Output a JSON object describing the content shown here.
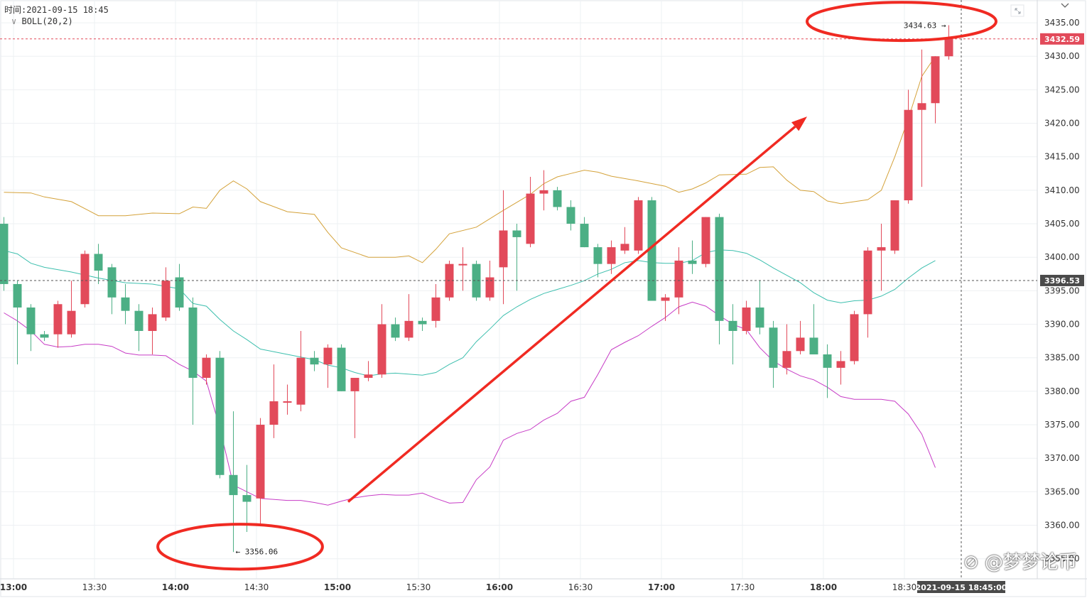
{
  "header": {
    "time_label": "时间:2021-09-15 18:45",
    "indicator_label": "BOLL(20,2)"
  },
  "watermark": "@梦梦论币",
  "crosshair_time": "2021-09-15 18:45:00",
  "colors": {
    "up": "#e24a5a",
    "down": "#4caf85",
    "boll_upper": "#d4a23a",
    "boll_mid": "#3dbfae",
    "boll_lower": "#c73cc6",
    "annotation": "#f02a22",
    "tag_bg": "#4a4a4a"
  },
  "icons": [
    "expand-icon",
    "chevron-down-icon",
    "collapse-chevron-icon"
  ],
  "chart_data": {
    "type": "candlestick",
    "interval": "5m",
    "x_ticks": [
      "13:00",
      "13:30",
      "14:00",
      "14:30",
      "15:00",
      "15:30",
      "16:00",
      "16:30",
      "17:00",
      "17:30",
      "18:00",
      "18:30"
    ],
    "x_tick_index": [
      0,
      6,
      12,
      18,
      24,
      30,
      36,
      42,
      48,
      54,
      60,
      66
    ],
    "y_ticks": [
      3355,
      3360,
      3365,
      3370,
      3375,
      3380,
      3385,
      3390,
      3395,
      3400,
      3405,
      3410,
      3415,
      3420,
      3425,
      3430,
      3435
    ],
    "ylim": [
      3352.0,
      3438.4
    ],
    "current_price": "3432.59",
    "crosshair_price": "3396.53",
    "high_label": "3434.63",
    "low_label": "3356.06",
    "candles": [
      {
        "o": 3405.0,
        "h": 3406.0,
        "l": 3395.0,
        "c": 3396.0
      },
      {
        "o": 3396.0,
        "h": 3396.5,
        "l": 3384.0,
        "c": 3392.5
      },
      {
        "o": 3392.5,
        "h": 3393.0,
        "l": 3386.0,
        "c": 3388.5
      },
      {
        "o": 3388.5,
        "h": 3389.0,
        "l": 3387.5,
        "c": 3388.0
      },
      {
        "o": 3388.5,
        "h": 3393.5,
        "l": 3386.5,
        "c": 3393.0
      },
      {
        "o": 3388.5,
        "h": 3396.5,
        "l": 3388.0,
        "c": 3392.0
      },
      {
        "o": 3393.0,
        "h": 3401.0,
        "l": 3392.5,
        "c": 3400.5
      },
      {
        "o": 3400.5,
        "h": 3402.0,
        "l": 3396.0,
        "c": 3398.0
      },
      {
        "o": 3398.5,
        "h": 3399.0,
        "l": 3391.5,
        "c": 3394.0
      },
      {
        "o": 3394.0,
        "h": 3396.0,
        "l": 3390.0,
        "c": 3392.0
      },
      {
        "o": 3392.0,
        "h": 3393.0,
        "l": 3386.0,
        "c": 3389.0
      },
      {
        "o": 3389.0,
        "h": 3392.5,
        "l": 3385.5,
        "c": 3391.5
      },
      {
        "o": 3391.0,
        "h": 3398.5,
        "l": 3390.5,
        "c": 3396.5
      },
      {
        "o": 3397.0,
        "h": 3399.0,
        "l": 3392.0,
        "c": 3392.5
      },
      {
        "o": 3392.5,
        "h": 3394.0,
        "l": 3375.0,
        "c": 3382.0
      },
      {
        "o": 3382.0,
        "h": 3385.5,
        "l": 3381.0,
        "c": 3385.0
      },
      {
        "o": 3385.0,
        "h": 3386.0,
        "l": 3367.0,
        "c": 3367.5
      },
      {
        "o": 3367.5,
        "h": 3377.0,
        "l": 3356.0,
        "c": 3364.5
      },
      {
        "o": 3364.5,
        "h": 3369.0,
        "l": 3359.0,
        "c": 3363.5
      },
      {
        "o": 3364.0,
        "h": 3376.0,
        "l": 3360.0,
        "c": 3375.0
      },
      {
        "o": 3375.0,
        "h": 3384.0,
        "l": 3373.0,
        "c": 3378.5
      },
      {
        "o": 3378.5,
        "h": 3381.0,
        "l": 3376.5,
        "c": 3378.5
      },
      {
        "o": 3378.0,
        "h": 3389.0,
        "l": 3377.0,
        "c": 3385.0
      },
      {
        "o": 3385.0,
        "h": 3386.0,
        "l": 3383.0,
        "c": 3384.0
      },
      {
        "o": 3384.0,
        "h": 3387.0,
        "l": 3380.5,
        "c": 3386.5
      },
      {
        "o": 3386.5,
        "h": 3387.0,
        "l": 3380.0,
        "c": 3380.0
      },
      {
        "o": 3380.0,
        "h": 3382.0,
        "l": 3373.0,
        "c": 3382.0
      },
      {
        "o": 3382.0,
        "h": 3384.5,
        "l": 3381.5,
        "c": 3382.5
      },
      {
        "o": 3382.5,
        "h": 3393.0,
        "l": 3382.0,
        "c": 3390.0
      },
      {
        "o": 3390.0,
        "h": 3391.0,
        "l": 3387.5,
        "c": 3388.0
      },
      {
        "o": 3388.0,
        "h": 3394.5,
        "l": 3387.5,
        "c": 3390.5
      },
      {
        "o": 3390.5,
        "h": 3391.0,
        "l": 3389.0,
        "c": 3390.0
      },
      {
        "o": 3390.5,
        "h": 3396.0,
        "l": 3389.5,
        "c": 3394.0
      },
      {
        "o": 3394.0,
        "h": 3399.5,
        "l": 3393.5,
        "c": 3399.0
      },
      {
        "o": 3399.0,
        "h": 3401.5,
        "l": 3395.0,
        "c": 3399.0
      },
      {
        "o": 3399.0,
        "h": 3399.5,
        "l": 3393.5,
        "c": 3394.0
      },
      {
        "o": 3394.0,
        "h": 3399.5,
        "l": 3393.5,
        "c": 3397.0
      },
      {
        "o": 3398.5,
        "h": 3410.0,
        "l": 3393.0,
        "c": 3404.0
      },
      {
        "o": 3404.0,
        "h": 3405.0,
        "l": 3395.0,
        "c": 3403.0
      },
      {
        "o": 3402.0,
        "h": 3412.0,
        "l": 3401.5,
        "c": 3409.5
      },
      {
        "o": 3409.5,
        "h": 3413.0,
        "l": 3407.0,
        "c": 3410.0
      },
      {
        "o": 3410.0,
        "h": 3410.5,
        "l": 3407.0,
        "c": 3407.5
      },
      {
        "o": 3407.5,
        "h": 3408.5,
        "l": 3404.0,
        "c": 3405.0
      },
      {
        "o": 3405.0,
        "h": 3406.0,
        "l": 3401.5,
        "c": 3401.5
      },
      {
        "o": 3401.5,
        "h": 3402.0,
        "l": 3397.0,
        "c": 3399.0
      },
      {
        "o": 3399.0,
        "h": 3402.5,
        "l": 3397.5,
        "c": 3401.5
      },
      {
        "o": 3401.0,
        "h": 3404.5,
        "l": 3400.5,
        "c": 3402.0
      },
      {
        "o": 3401.0,
        "h": 3409.0,
        "l": 3400.5,
        "c": 3408.5
      },
      {
        "o": 3408.5,
        "h": 3409.0,
        "l": 3393.5,
        "c": 3393.5
      },
      {
        "o": 3393.5,
        "h": 3394.5,
        "l": 3390.5,
        "c": 3394.0
      },
      {
        "o": 3394.0,
        "h": 3401.5,
        "l": 3391.5,
        "c": 3399.5
      },
      {
        "o": 3399.5,
        "h": 3402.5,
        "l": 3397.5,
        "c": 3399.0
      },
      {
        "o": 3399.0,
        "h": 3406.0,
        "l": 3398.5,
        "c": 3406.0
      },
      {
        "o": 3406.0,
        "h": 3406.5,
        "l": 3387.0,
        "c": 3390.5
      },
      {
        "o": 3390.5,
        "h": 3393.0,
        "l": 3384.0,
        "c": 3389.0
      },
      {
        "o": 3389.0,
        "h": 3393.5,
        "l": 3388.5,
        "c": 3392.5
      },
      {
        "o": 3392.5,
        "h": 3396.5,
        "l": 3388.5,
        "c": 3389.5
      },
      {
        "o": 3389.5,
        "h": 3390.5,
        "l": 3380.5,
        "c": 3383.5
      },
      {
        "o": 3383.5,
        "h": 3390.0,
        "l": 3382.5,
        "c": 3386.0
      },
      {
        "o": 3386.0,
        "h": 3390.5,
        "l": 3385.5,
        "c": 3388.0
      },
      {
        "o": 3388.0,
        "h": 3393.0,
        "l": 3385.5,
        "c": 3385.5
      },
      {
        "o": 3385.5,
        "h": 3387.0,
        "l": 3379.0,
        "c": 3383.5
      },
      {
        "o": 3383.5,
        "h": 3386.0,
        "l": 3381.0,
        "c": 3384.5
      },
      {
        "o": 3384.5,
        "h": 3392.0,
        "l": 3384.0,
        "c": 3391.5
      },
      {
        "o": 3391.5,
        "h": 3401.5,
        "l": 3388.0,
        "c": 3401.0
      },
      {
        "o": 3401.0,
        "h": 3405.0,
        "l": 3395.0,
        "c": 3401.5
      },
      {
        "o": 3401.0,
        "h": 3408.5,
        "l": 3400.5,
        "c": 3408.5
      },
      {
        "o": 3408.5,
        "h": 3425.0,
        "l": 3408.0,
        "c": 3422.0
      },
      {
        "o": 3422.0,
        "h": 3431.0,
        "l": 3410.5,
        "c": 3423.0
      },
      {
        "o": 3423.0,
        "h": 3430.0,
        "l": 3420.0,
        "c": 3430.0
      },
      {
        "o": 3430.0,
        "h": 3434.63,
        "l": 3429.5,
        "c": 3432.59
      }
    ],
    "boll_upper": [
      [
        0,
        3409.7
      ],
      [
        2,
        3409.6
      ],
      [
        3,
        3409.0
      ],
      [
        5,
        3408.3
      ],
      [
        7,
        3406.2
      ],
      [
        9,
        3406.2
      ],
      [
        11,
        3406.6
      ],
      [
        13,
        3406.5
      ],
      [
        14,
        3407.5
      ],
      [
        15,
        3407.3
      ],
      [
        16,
        3410.0
      ],
      [
        17,
        3411.4
      ],
      [
        18,
        3410.2
      ],
      [
        19,
        3408.3
      ],
      [
        21,
        3406.8
      ],
      [
        23,
        3406.4
      ],
      [
        24,
        3403.7
      ],
      [
        25,
        3401.4
      ],
      [
        27,
        3400.0
      ],
      [
        29,
        3400.0
      ],
      [
        30,
        3400.2
      ],
      [
        31,
        3399.2
      ],
      [
        32,
        3401.2
      ],
      [
        33,
        3403.5
      ],
      [
        35,
        3404.5
      ],
      [
        37,
        3407.0
      ],
      [
        39,
        3409.4
      ],
      [
        40,
        3411.0
      ],
      [
        41,
        3412.0
      ],
      [
        42,
        3412.5
      ],
      [
        43,
        3413.0
      ],
      [
        44,
        3412.7
      ],
      [
        45,
        3412.1
      ],
      [
        47,
        3411.4
      ],
      [
        48,
        3411.0
      ],
      [
        49,
        3410.6
      ],
      [
        50,
        3409.7
      ],
      [
        51,
        3410.2
      ],
      [
        52,
        3411.1
      ],
      [
        53,
        3412.3
      ],
      [
        55,
        3412.4
      ],
      [
        56,
        3413.4
      ],
      [
        57,
        3413.5
      ],
      [
        58,
        3411.5
      ],
      [
        59,
        3410.0
      ],
      [
        60,
        3409.8
      ],
      [
        61,
        3408.4
      ],
      [
        62,
        3408.0
      ],
      [
        64,
        3408.6
      ],
      [
        65,
        3410.0
      ],
      [
        66,
        3415.0
      ],
      [
        67,
        3420.7
      ],
      [
        68,
        3427.0
      ],
      [
        69,
        3430.0
      ]
    ],
    "boll_mid": [
      [
        0,
        3401.0
      ],
      [
        1,
        3400.5
      ],
      [
        2,
        3399.1
      ],
      [
        3,
        3398.5
      ],
      [
        5,
        3397.8
      ],
      [
        7,
        3396.9
      ],
      [
        9,
        3396.2
      ],
      [
        11,
        3396.0
      ],
      [
        13,
        3395.3
      ],
      [
        14,
        3393.1
      ],
      [
        15,
        3392.7
      ],
      [
        16,
        3390.7
      ],
      [
        17,
        3389.0
      ],
      [
        18,
        3387.7
      ],
      [
        19,
        3386.3
      ],
      [
        20,
        3385.9
      ],
      [
        21,
        3385.5
      ],
      [
        23,
        3384.7
      ],
      [
        24,
        3383.9
      ],
      [
        25,
        3383.5
      ],
      [
        26,
        3382.8
      ],
      [
        27,
        3382.3
      ],
      [
        28,
        3382.6
      ],
      [
        29,
        3382.7
      ],
      [
        31,
        3382.4
      ],
      [
        32,
        3382.8
      ],
      [
        33,
        3384.0
      ],
      [
        34,
        3385.0
      ],
      [
        35,
        3387.4
      ],
      [
        36,
        3389.3
      ],
      [
        37,
        3391.3
      ],
      [
        38,
        3392.6
      ],
      [
        39,
        3393.7
      ],
      [
        40,
        3394.6
      ],
      [
        41,
        3395.2
      ],
      [
        42,
        3395.8
      ],
      [
        43,
        3396.5
      ],
      [
        44,
        3397.5
      ],
      [
        45,
        3398.2
      ],
      [
        46,
        3399.2
      ],
      [
        47,
        3399.5
      ],
      [
        48,
        3399.2
      ],
      [
        49,
        3399.1
      ],
      [
        50,
        3399.1
      ],
      [
        51,
        3399.5
      ],
      [
        52,
        3400.7
      ],
      [
        53,
        3401.1
      ],
      [
        54,
        3401.0
      ],
      [
        55,
        3400.6
      ],
      [
        56,
        3399.6
      ],
      [
        57,
        3398.4
      ],
      [
        58,
        3397.3
      ],
      [
        59,
        3396.2
      ],
      [
        60,
        3394.7
      ],
      [
        61,
        3393.6
      ],
      [
        62,
        3393.2
      ],
      [
        63,
        3393.5
      ],
      [
        64,
        3393.6
      ],
      [
        65,
        3394.2
      ],
      [
        66,
        3395.2
      ],
      [
        67,
        3396.9
      ],
      [
        68,
        3398.4
      ],
      [
        69,
        3399.5
      ]
    ],
    "boll_lower": [
      [
        0,
        3391.7
      ],
      [
        1,
        3390.5
      ],
      [
        2,
        3389.0
      ],
      [
        3,
        3387.0
      ],
      [
        4,
        3386.6
      ],
      [
        5,
        3386.7
      ],
      [
        6,
        3387.0
      ],
      [
        7,
        3387.0
      ],
      [
        8,
        3386.7
      ],
      [
        9,
        3385.7
      ],
      [
        10,
        3385.4
      ],
      [
        11,
        3385.4
      ],
      [
        12,
        3385.3
      ],
      [
        13,
        3384.0
      ],
      [
        14,
        3383.0
      ],
      [
        15,
        3381.5
      ],
      [
        16,
        3374.5
      ],
      [
        17,
        3366.0
      ],
      [
        18,
        3365.0
      ],
      [
        19,
        3364.0
      ],
      [
        21,
        3363.7
      ],
      [
        22,
        3363.7
      ],
      [
        23,
        3363.4
      ],
      [
        24,
        3363.0
      ],
      [
        25,
        3363.6
      ],
      [
        26,
        3364.1
      ],
      [
        27,
        3364.4
      ],
      [
        28,
        3364.6
      ],
      [
        29,
        3364.5
      ],
      [
        30,
        3364.5
      ],
      [
        31,
        3364.8
      ],
      [
        32,
        3364.0
      ],
      [
        33,
        3363.3
      ],
      [
        34,
        3363.4
      ],
      [
        35,
        3366.8
      ],
      [
        36,
        3368.7
      ],
      [
        37,
        3372.7
      ],
      [
        38,
        3373.7
      ],
      [
        39,
        3374.3
      ],
      [
        40,
        3375.7
      ],
      [
        41,
        3376.7
      ],
      [
        42,
        3378.5
      ],
      [
        43,
        3379.1
      ],
      [
        44,
        3382.5
      ],
      [
        45,
        3386.2
      ],
      [
        46,
        3387.3
      ],
      [
        47,
        3388.3
      ],
      [
        48,
        3389.7
      ],
      [
        49,
        3391.0
      ],
      [
        50,
        3392.6
      ],
      [
        51,
        3393.3
      ],
      [
        52,
        3392.7
      ],
      [
        53,
        3391.3
      ],
      [
        54,
        3390.0
      ],
      [
        55,
        3389.2
      ],
      [
        56,
        3386.5
      ],
      [
        57,
        3384.5
      ],
      [
        58,
        3383.3
      ],
      [
        59,
        3382.3
      ],
      [
        60,
        3381.7
      ],
      [
        61,
        3380.6
      ],
      [
        62,
        3379.2
      ],
      [
        63,
        3378.8
      ],
      [
        64,
        3378.8
      ],
      [
        65,
        3378.8
      ],
      [
        66,
        3378.5
      ],
      [
        67,
        3376.6
      ],
      [
        68,
        3373.6
      ],
      [
        69,
        3368.6
      ]
    ],
    "annotations": {
      "trend_arrow": {
        "from": [
          25.5,
          3363.5
        ],
        "to": [
          59.5,
          3421.0
        ]
      },
      "circle_low": {
        "center": [
          17.5,
          3356.8
        ],
        "rx_bars": 6.1,
        "ry_price": 3.35
      },
      "circle_high": {
        "center": [
          66.5,
          3435.2
        ],
        "rx_bars": 7.0,
        "ry_price": 2.85
      }
    }
  }
}
